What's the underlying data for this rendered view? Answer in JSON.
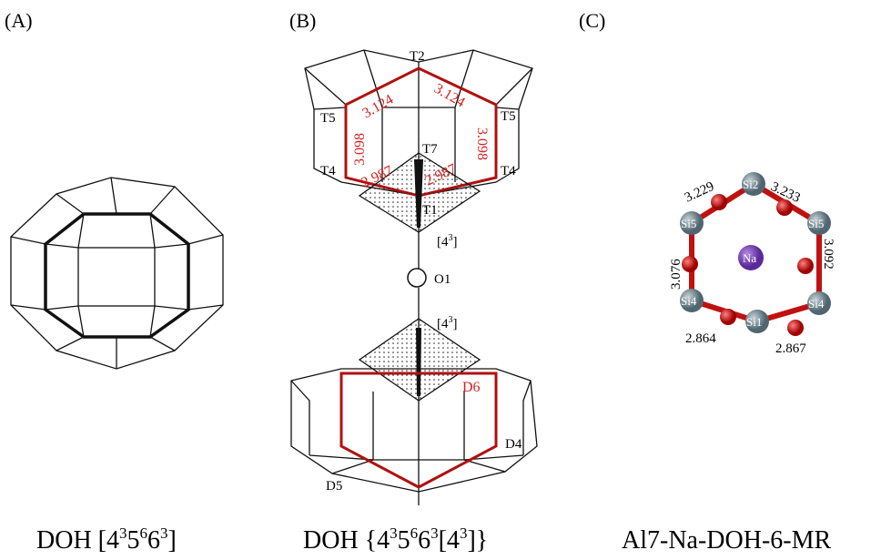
{
  "panel_a": {
    "label": "(A)",
    "caption": [
      "DOH [4",
      "3",
      "5",
      "6",
      "6",
      "3",
      "]"
    ]
  },
  "panel_b": {
    "label": "(B)",
    "caption": [
      "DOH {4",
      "3",
      "5",
      "6",
      "6",
      "3",
      "[4",
      "3",
      "]}"
    ],
    "atom_labels": [
      "T2",
      "T5",
      "T5",
      "T7",
      "T4",
      "T4",
      "T1",
      "O1",
      "D6",
      "D5",
      "D4"
    ],
    "cage_labels": [
      [
        "[4",
        "3",
        "]"
      ],
      [
        "[4",
        "3",
        "]"
      ]
    ],
    "distances": [
      3.124,
      3.124,
      3.098,
      3.098,
      2.987,
      2.987
    ]
  },
  "panel_c": {
    "label": "(C)",
    "caption": "Al7-Na-DOH-6-MR",
    "atom_labels": [
      "Si2",
      "Si5",
      "Si5",
      "Si4",
      "Si4",
      "Si1",
      "Na"
    ],
    "distances": [
      3.229,
      3.233,
      3.076,
      3.092,
      2.864,
      2.867
    ]
  }
}
